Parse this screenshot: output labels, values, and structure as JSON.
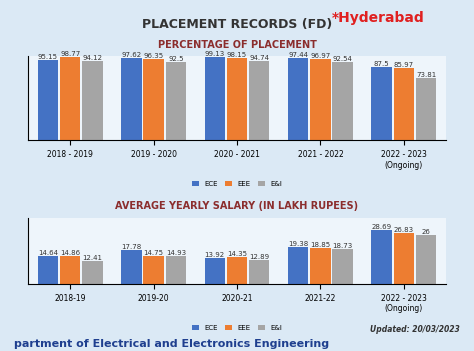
{
  "title": "PLACEMENT RECORDS (FD)",
  "annotation": "*Hyderabad",
  "updated": "Updated: 20/03/2023",
  "footer": "partment of Electrical and Electronics Engineering",
  "chart_data": [
    {
      "type": "bar",
      "title": "PERCENTAGE OF PLACEMENT",
      "categories": [
        "2018 - 2019",
        "2019 - 2020",
        "2020 - 2021",
        "2021 - 2022",
        "2022 - 2023\n(Ongoing)"
      ],
      "series": [
        {
          "name": "ECE",
          "color": "#4472c4",
          "values": [
            95.15,
            97.62,
            99.13,
            97.44,
            87.5
          ]
        },
        {
          "name": "EEE",
          "color": "#ed7d31",
          "values": [
            98.77,
            96.35,
            98.15,
            96.97,
            85.97
          ]
        },
        {
          "name": "E&I",
          "color": "#a5a5a5",
          "values": [
            94.12,
            92.5,
            94.74,
            92.54,
            73.81
          ]
        }
      ],
      "ylim": [
        0,
        100
      ],
      "yticks": [],
      "tick_labels": "x",
      "data_labels": true,
      "legend": "lower center",
      "grid": false
    },
    {
      "type": "bar",
      "title": "AVERAGE YEARLY SALARY (IN LAKH RUPEES)",
      "categories": [
        "2018-19",
        "2019-20",
        "2020-21",
        "2021-22",
        "2022 - 2023\n(Ongoing)"
      ],
      "series": [
        {
          "name": "ECE",
          "color": "#4472c4",
          "values": [
            14.64,
            17.78,
            13.92,
            19.38,
            28.69
          ]
        },
        {
          "name": "EEE",
          "color": "#ed7d31",
          "values": [
            14.86,
            14.75,
            14.35,
            18.85,
            26.83
          ]
        },
        {
          "name": "E&I",
          "color": "#a5a5a5",
          "values": [
            12.41,
            14.93,
            12.89,
            18.73,
            26
          ]
        }
      ],
      "ylim": [
        0,
        35
      ],
      "yticks": [],
      "tick_labels": "x",
      "data_labels": true,
      "legend": "lower center",
      "grid": false
    }
  ]
}
